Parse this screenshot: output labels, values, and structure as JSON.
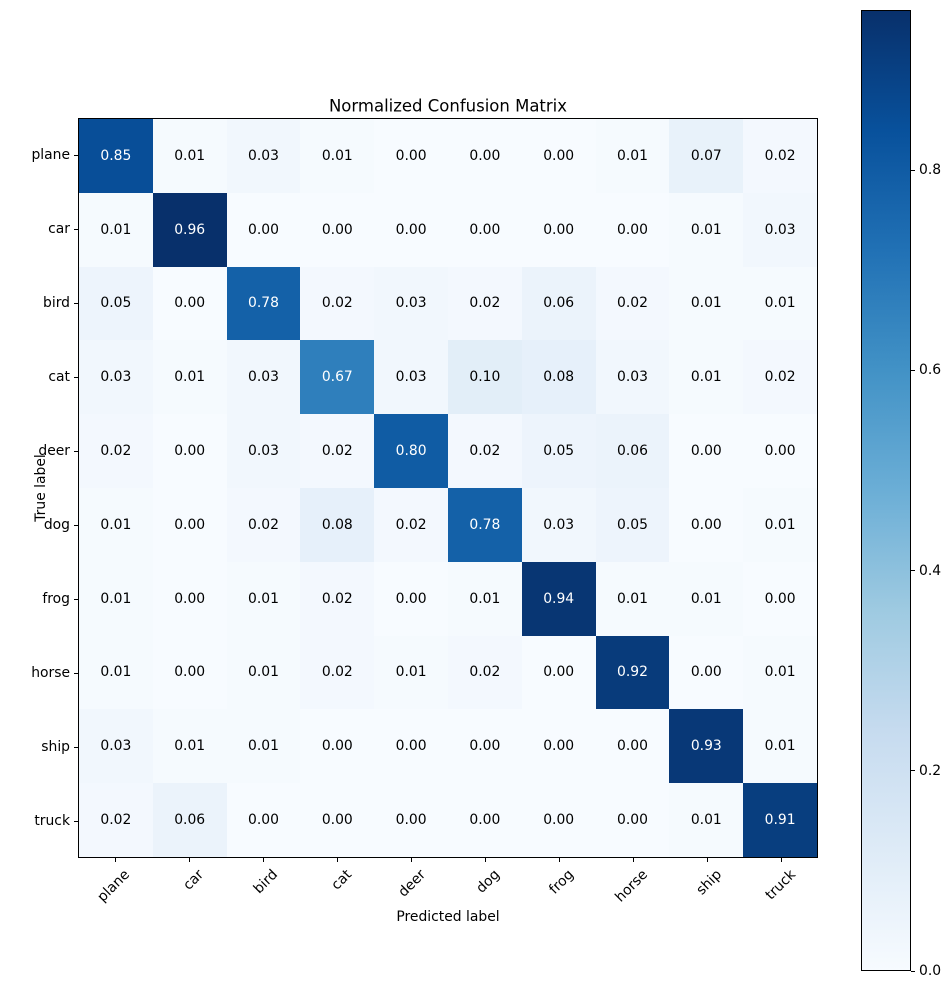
{
  "chart_data": {
    "type": "heatmap",
    "title": "Normalized Confusion Matrix",
    "xlabel": "Predicted label",
    "ylabel": "True label",
    "categories": [
      "plane",
      "car",
      "bird",
      "cat",
      "deer",
      "dog",
      "frog",
      "horse",
      "ship",
      "truck"
    ],
    "rows": [
      [
        0.85,
        0.01,
        0.03,
        0.01,
        0.0,
        0.0,
        0.0,
        0.01,
        0.07,
        0.02
      ],
      [
        0.01,
        0.96,
        0.0,
        0.0,
        0.0,
        0.0,
        0.0,
        0.0,
        0.01,
        0.03
      ],
      [
        0.05,
        0.0,
        0.78,
        0.02,
        0.03,
        0.02,
        0.06,
        0.02,
        0.01,
        0.01
      ],
      [
        0.03,
        0.01,
        0.03,
        0.67,
        0.03,
        0.1,
        0.08,
        0.03,
        0.01,
        0.02
      ],
      [
        0.02,
        0.0,
        0.03,
        0.02,
        0.8,
        0.02,
        0.05,
        0.06,
        0.0,
        0.0
      ],
      [
        0.01,
        0.0,
        0.02,
        0.08,
        0.02,
        0.78,
        0.03,
        0.05,
        0.0,
        0.01
      ],
      [
        0.01,
        0.0,
        0.01,
        0.02,
        0.0,
        0.01,
        0.94,
        0.01,
        0.01,
        0.0
      ],
      [
        0.01,
        0.0,
        0.01,
        0.02,
        0.01,
        0.02,
        0.0,
        0.92,
        0.0,
        0.01
      ],
      [
        0.03,
        0.01,
        0.01,
        0.0,
        0.0,
        0.0,
        0.0,
        0.0,
        0.93,
        0.01
      ],
      [
        0.02,
        0.06,
        0.0,
        0.0,
        0.0,
        0.0,
        0.0,
        0.0,
        0.01,
        0.91
      ]
    ],
    "value_decimals": 2,
    "colormap": "Blues",
    "vmin": 0.0,
    "vmax": 0.96,
    "grid": false,
    "colorbar": {
      "position": "right",
      "ticks": [
        "0.0",
        "0.2",
        "0.4",
        "0.6",
        "0.8"
      ]
    }
  },
  "colors": {
    "blues_anchors": [
      "#f7fbff",
      "#deebf7",
      "#c6dbef",
      "#9ecae1",
      "#6baed6",
      "#4292c6",
      "#2171b5",
      "#08519c",
      "#08306b"
    ],
    "cell_text_dark": "#000000",
    "cell_text_light": "#ffffff",
    "frame": "#000000",
    "background": "#ffffff"
  }
}
